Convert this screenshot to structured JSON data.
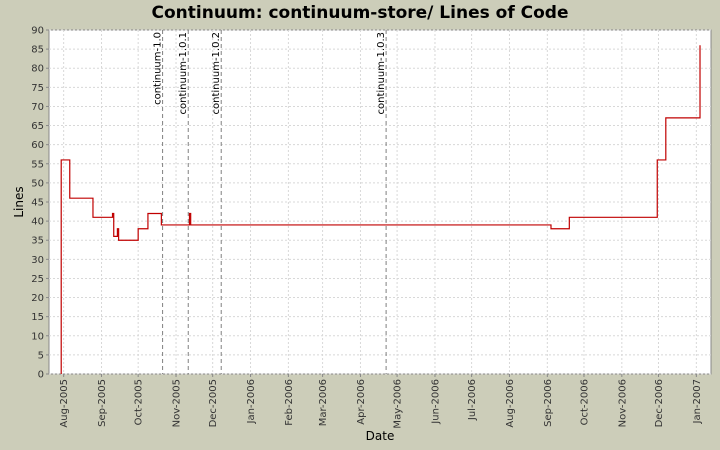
{
  "chart_data": {
    "type": "line",
    "title": "Continuum: continuum-store/ Lines of Code",
    "xlabel": "Date",
    "ylabel": "Lines",
    "ylim": [
      0,
      90
    ],
    "y_ticks": [
      0,
      5,
      10,
      15,
      20,
      25,
      30,
      35,
      40,
      45,
      50,
      55,
      60,
      65,
      70,
      75,
      80,
      85,
      90
    ],
    "xlim": [
      "2005-07-20",
      "2007-01-13"
    ],
    "x_ticks": [
      {
        "date": "2005-08-01",
        "label": "Aug-2005"
      },
      {
        "date": "2005-09-01",
        "label": "Sep-2005"
      },
      {
        "date": "2005-10-01",
        "label": "Oct-2005"
      },
      {
        "date": "2005-11-01",
        "label": "Nov-2005"
      },
      {
        "date": "2005-12-01",
        "label": "Dec-2005"
      },
      {
        "date": "2006-01-01",
        "label": "Jan-2006"
      },
      {
        "date": "2006-02-01",
        "label": "Feb-2006"
      },
      {
        "date": "2006-03-01",
        "label": "Mar-2006"
      },
      {
        "date": "2006-04-01",
        "label": "Apr-2006"
      },
      {
        "date": "2006-05-01",
        "label": "May-2006"
      },
      {
        "date": "2006-06-01",
        "label": "Jun-2006"
      },
      {
        "date": "2006-07-01",
        "label": "Jul-2006"
      },
      {
        "date": "2006-08-01",
        "label": "Aug-2006"
      },
      {
        "date": "2006-09-01",
        "label": "Sep-2006"
      },
      {
        "date": "2006-10-01",
        "label": "Oct-2006"
      },
      {
        "date": "2006-11-01",
        "label": "Nov-2006"
      },
      {
        "date": "2006-12-01",
        "label": "Dec-2006"
      },
      {
        "date": "2007-01-01",
        "label": "Jan-2007"
      }
    ],
    "grid": true,
    "line_color": "#c00000",
    "marker_color": "#808080",
    "background_color": "#ffffff",
    "series": [
      {
        "step": true,
        "points": [
          {
            "x": "2005-07-30",
            "y": 0
          },
          {
            "x": "2005-07-30",
            "y": 56
          },
          {
            "x": "2005-08-06",
            "y": 46
          },
          {
            "x": "2005-08-25",
            "y": 41
          },
          {
            "x": "2005-09-10",
            "y": 42
          },
          {
            "x": "2005-09-11",
            "y": 36
          },
          {
            "x": "2005-09-14",
            "y": 38
          },
          {
            "x": "2005-09-15",
            "y": 35
          },
          {
            "x": "2005-10-01",
            "y": 38
          },
          {
            "x": "2005-10-09",
            "y": 42
          },
          {
            "x": "2005-10-20",
            "y": 39
          },
          {
            "x": "2005-11-12",
            "y": 42
          },
          {
            "x": "2005-11-13",
            "y": 39
          },
          {
            "x": "2006-09-04",
            "y": 38
          },
          {
            "x": "2006-09-19",
            "y": 41
          },
          {
            "x": "2006-11-30",
            "y": 56
          },
          {
            "x": "2006-12-07",
            "y": 67
          },
          {
            "x": "2007-01-04",
            "y": 86
          },
          {
            "x": "2007-01-04",
            "y": 86
          }
        ]
      }
    ],
    "markers": [
      {
        "x": "2005-10-21",
        "label": "continuum-1.0"
      },
      {
        "x": "2005-11-11",
        "label": "continuum-1.0.1"
      },
      {
        "x": "2005-12-08",
        "label": "continuum-1.0.2"
      },
      {
        "x": "2006-04-22",
        "label": "continuum-1.0.3"
      }
    ]
  }
}
